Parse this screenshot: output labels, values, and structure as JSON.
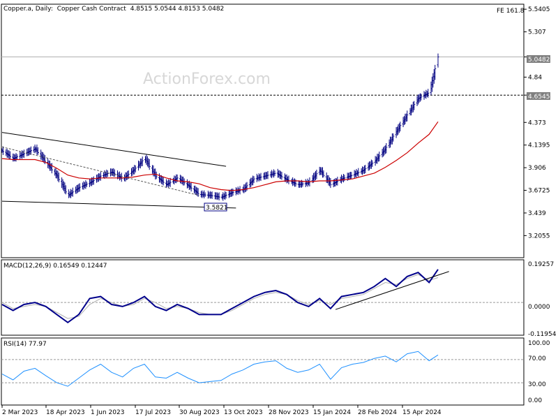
{
  "header": {
    "symbol": "Copper.a, Daily:",
    "instrument": "Copper Cash Contract",
    "ohlc": "4.8515 5.0544 4.8153 5.0482",
    "fe_label": "FE 161.8"
  },
  "watermark": "ActionForex.com",
  "price_tags": {
    "last": "5.0482",
    "level": "4.6545",
    "low": "3.5821"
  },
  "macd": {
    "title": "MACD(12,26,9) 0.16549 0.12447",
    "ticks": [
      "0.19257",
      "0.0000",
      "-0.11954"
    ]
  },
  "rsi": {
    "title": "RSI(14) 77.97",
    "ticks": [
      "100.00",
      "70.00",
      "30.00",
      "0.00"
    ]
  },
  "x_ticks": [
    "2 Mar 2023",
    "18 Apr 2023",
    "1 Jun 2023",
    "17 Jul 2023",
    "30 Aug 2023",
    "13 Oct 2023",
    "28 Nov 2023",
    "15 Jan 2024",
    "28 Feb 2024",
    "15 Apr 2024"
  ],
  "colors": {
    "macd_line": "#00008b",
    "signal_line": "#b0b0b0",
    "ma_line": "#cc0000",
    "rsi_line": "#1e90ff",
    "bars": "#000080",
    "tag_bg": "#7f7f7f"
  },
  "chart_data": [
    {
      "type": "line",
      "name": "price",
      "y_ticks": [
        5.5405,
        5.307,
        5.0482,
        4.84,
        4.6545,
        4.373,
        4.1395,
        3.906,
        3.6725,
        3.439,
        3.2055
      ],
      "ylim": [
        2.985,
        5.585
      ],
      "x": [
        "2023-03-02",
        "2023-03-13",
        "2023-03-24",
        "2023-04-04",
        "2023-04-15",
        "2023-04-26",
        "2023-05-07",
        "2023-05-18",
        "2023-05-29",
        "2023-06-09",
        "2023-06-20",
        "2023-07-01",
        "2023-07-12",
        "2023-07-23",
        "2023-08-03",
        "2023-08-14",
        "2023-08-25",
        "2023-09-05",
        "2023-09-16",
        "2023-09-27",
        "2023-10-08",
        "2023-10-19",
        "2023-10-30",
        "2023-11-10",
        "2023-11-21",
        "2023-12-02",
        "2023-12-13",
        "2023-12-24",
        "2024-01-04",
        "2024-01-15",
        "2024-01-26",
        "2024-02-06",
        "2024-02-17",
        "2024-02-28",
        "2024-03-10",
        "2024-03-21",
        "2024-04-01",
        "2024-04-12",
        "2024-04-23",
        "2024-05-04",
        "2024-05-13"
      ],
      "close": [
        4.08,
        4.0,
        4.05,
        4.1,
        3.96,
        3.82,
        3.62,
        3.7,
        3.75,
        3.82,
        3.86,
        3.79,
        3.88,
        4.0,
        3.82,
        3.73,
        3.8,
        3.72,
        3.63,
        3.62,
        3.6,
        3.65,
        3.68,
        3.79,
        3.82,
        3.85,
        3.78,
        3.73,
        3.75,
        3.88,
        3.73,
        3.79,
        3.83,
        3.88,
        3.97,
        4.1,
        4.28,
        4.45,
        4.62,
        4.68,
        5.0482
      ],
      "ma": [
        4.0,
        3.99,
        3.99,
        3.99,
        3.96,
        3.9,
        3.83,
        3.8,
        3.79,
        3.8,
        3.8,
        3.8,
        3.81,
        3.83,
        3.84,
        3.8,
        3.77,
        3.76,
        3.74,
        3.7,
        3.68,
        3.67,
        3.68,
        3.7,
        3.73,
        3.76,
        3.77,
        3.77,
        3.76,
        3.77,
        3.77,
        3.78,
        3.79,
        3.82,
        3.85,
        3.91,
        3.98,
        4.06,
        4.16,
        4.25,
        4.38
      ],
      "fe_level": 5.0482,
      "dashed_level": 4.6545,
      "marked_low": 3.5821,
      "trendlines": [
        {
          "x": [
            "2023-03-02",
            "2023-10-13"
          ],
          "y": [
            4.27,
            3.92
          ]
        },
        {
          "x": [
            "2023-03-02",
            "2023-10-23"
          ],
          "y": [
            3.56,
            3.49
          ]
        }
      ]
    },
    {
      "type": "line",
      "name": "MACD(12,26,9)",
      "x": [
        "2023-03-02",
        "2023-03-13",
        "2023-03-24",
        "2023-04-04",
        "2023-04-15",
        "2023-04-26",
        "2023-05-07",
        "2023-05-18",
        "2023-05-29",
        "2023-06-09",
        "2023-06-20",
        "2023-07-01",
        "2023-07-12",
        "2023-07-23",
        "2023-08-03",
        "2023-08-14",
        "2023-08-25",
        "2023-09-05",
        "2023-09-16",
        "2023-09-27",
        "2023-10-08",
        "2023-10-19",
        "2023-10-30",
        "2023-11-10",
        "2023-11-21",
        "2023-12-02",
        "2023-12-13",
        "2023-12-24",
        "2024-01-04",
        "2024-01-15",
        "2024-01-26",
        "2024-02-06",
        "2024-02-17",
        "2024-02-28",
        "2024-03-10",
        "2024-03-21",
        "2024-04-01",
        "2024-04-12",
        "2024-04-23",
        "2024-05-04",
        "2024-05-13"
      ],
      "macd": [
        -0.01,
        -0.04,
        -0.01,
        0.0,
        -0.02,
        -0.06,
        -0.1,
        -0.06,
        0.02,
        0.03,
        -0.01,
        -0.02,
        0.0,
        0.03,
        -0.02,
        -0.04,
        -0.01,
        -0.03,
        -0.06,
        -0.06,
        -0.06,
        -0.03,
        0.0,
        0.03,
        0.05,
        0.06,
        0.04,
        0.0,
        -0.02,
        0.02,
        -0.03,
        0.03,
        0.04,
        0.05,
        0.08,
        0.12,
        0.08,
        0.13,
        0.15,
        0.1,
        0.16549
      ],
      "signal": [
        0.0,
        -0.03,
        -0.02,
        -0.01,
        -0.02,
        -0.05,
        -0.08,
        -0.07,
        -0.01,
        0.02,
        0.0,
        -0.02,
        -0.01,
        0.02,
        0.0,
        -0.03,
        -0.02,
        -0.03,
        -0.05,
        -0.06,
        -0.06,
        -0.04,
        -0.01,
        0.02,
        0.04,
        0.05,
        0.04,
        0.01,
        -0.01,
        0.01,
        -0.01,
        0.02,
        0.03,
        0.04,
        0.07,
        0.1,
        0.09,
        0.12,
        0.14,
        0.11,
        0.12447
      ],
      "ylim": [
        -0.16,
        0.21
      ],
      "trendline": {
        "x": [
          "2024-01-31",
          "2024-05-24"
        ],
        "y": [
          -0.035,
          0.155
        ]
      }
    },
    {
      "type": "line",
      "name": "RSI(14)",
      "x": [
        "2023-03-02",
        "2023-03-13",
        "2023-03-24",
        "2023-04-04",
        "2023-04-15",
        "2023-04-26",
        "2023-05-07",
        "2023-05-18",
        "2023-05-29",
        "2023-06-09",
        "2023-06-20",
        "2023-07-01",
        "2023-07-12",
        "2023-07-23",
        "2023-08-03",
        "2023-08-14",
        "2023-08-25",
        "2023-09-05",
        "2023-09-16",
        "2023-09-27",
        "2023-10-08",
        "2023-10-19",
        "2023-10-30",
        "2023-11-10",
        "2023-11-21",
        "2023-12-02",
        "2023-12-13",
        "2023-12-24",
        "2024-01-04",
        "2024-01-15",
        "2024-01-26",
        "2024-02-06",
        "2024-02-17",
        "2024-02-28",
        "2024-03-10",
        "2024-03-21",
        "2024-04-01",
        "2024-04-12",
        "2024-04-23",
        "2024-05-04",
        "2024-05-13"
      ],
      "values": [
        45,
        35,
        50,
        55,
        42,
        30,
        24,
        38,
        52,
        62,
        48,
        40,
        55,
        62,
        40,
        38,
        48,
        38,
        30,
        32,
        34,
        45,
        52,
        62,
        66,
        68,
        55,
        48,
        52,
        62,
        36,
        56,
        62,
        65,
        72,
        76,
        66,
        80,
        84,
        68,
        77.97
      ],
      "ylim": [
        0,
        100
      ],
      "levels": [
        70,
        30
      ]
    }
  ]
}
